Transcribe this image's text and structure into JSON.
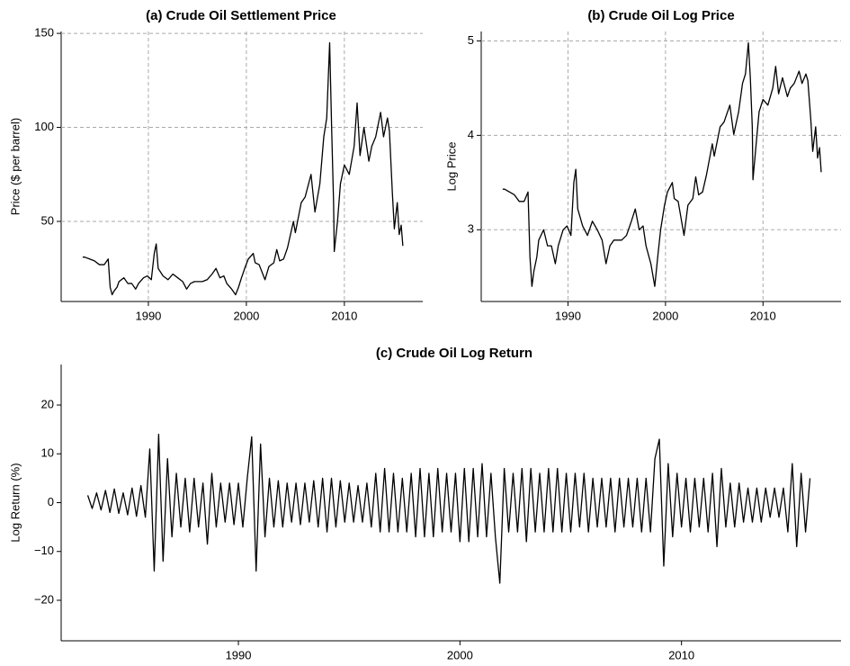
{
  "chart_data": [
    {
      "type": "line",
      "title": "(a) Crude Oil Settlement Price",
      "y_label": "Price ($ per barrel)",
      "color": "#000000",
      "grid": true,
      "x": [
        1983.3,
        1983.5,
        1984,
        1984.5,
        1985,
        1985.5,
        1985.9,
        1986.1,
        1986.3,
        1986.5,
        1986.8,
        1987,
        1987.5,
        1987.9,
        1988.3,
        1988.7,
        1989,
        1989.5,
        1989.9,
        1990.3,
        1990.6,
        1990.8,
        1991,
        1991.5,
        1992,
        1992.5,
        1993,
        1993.5,
        1993.9,
        1994.3,
        1994.7,
        1995,
        1995.5,
        1996,
        1996.5,
        1996.9,
        1997.3,
        1997.7,
        1998,
        1998.5,
        1998.9,
        1999.2,
        1999.5,
        1999.9,
        2000.2,
        2000.7,
        2000.9,
        2001.3,
        2001.9,
        2002.3,
        2002.8,
        2003.1,
        2003.4,
        2003.8,
        2004.2,
        2004.8,
        2005,
        2005.6,
        2006,
        2006.6,
        2007,
        2007.5,
        2007.9,
        2008.2,
        2008.5,
        2008.7,
        2008.9,
        2008.97,
        2009.3,
        2009.6,
        2010,
        2010.5,
        2011,
        2011.3,
        2011.6,
        2012,
        2012.5,
        2012.8,
        2013.2,
        2013.7,
        2014,
        2014.4,
        2014.6,
        2014.9,
        2015.1,
        2015.4,
        2015.6,
        2015.8,
        2015.97
      ],
      "values": [
        31,
        31,
        30,
        29,
        27,
        27,
        30,
        15,
        11,
        13,
        15,
        18,
        20,
        17,
        17,
        14,
        17,
        20,
        21,
        19,
        33,
        38,
        25,
        21,
        19,
        22,
        20,
        18,
        14,
        17,
        18,
        18,
        18,
        19,
        22,
        25,
        20,
        21,
        17,
        14,
        11,
        15,
        20,
        26,
        30,
        33,
        28,
        27,
        19,
        26,
        28,
        35,
        29,
        30,
        36,
        50,
        44,
        60,
        63,
        75,
        55,
        70,
        95,
        105,
        145,
        100,
        60,
        34,
        50,
        70,
        80,
        75,
        90,
        113,
        85,
        100,
        82,
        90,
        95,
        108,
        95,
        105,
        98,
        65,
        46,
        60,
        43,
        48,
        37
      ],
      "xlim": [
        1981.1,
        2018
      ],
      "ylim": [
        7.4,
        151
      ],
      "xticks": [
        1990,
        2000,
        2010
      ],
      "yticks": [
        50,
        100,
        150
      ]
    },
    {
      "type": "line",
      "title": "(b) Crude Oil Log Price",
      "y_label": "Log Price",
      "color": "#000000",
      "grid": true,
      "x": [
        1983.3,
        1983.5,
        1984,
        1984.5,
        1985,
        1985.5,
        1985.9,
        1986.1,
        1986.3,
        1986.5,
        1986.8,
        1987,
        1987.5,
        1987.9,
        1988.3,
        1988.7,
        1989,
        1989.5,
        1989.9,
        1990.3,
        1990.6,
        1990.8,
        1991,
        1991.5,
        1992,
        1992.5,
        1993,
        1993.5,
        1993.9,
        1994.3,
        1994.7,
        1995,
        1995.5,
        1996,
        1996.5,
        1996.9,
        1997.3,
        1997.7,
        1998,
        1998.5,
        1998.9,
        1999.2,
        1999.5,
        1999.9,
        2000.2,
        2000.7,
        2000.9,
        2001.3,
        2001.9,
        2002.3,
        2002.8,
        2003.1,
        2003.4,
        2003.8,
        2004.2,
        2004.8,
        2005,
        2005.6,
        2006,
        2006.6,
        2007,
        2007.5,
        2007.9,
        2008.2,
        2008.5,
        2008.7,
        2008.9,
        2008.97,
        2009.3,
        2009.6,
        2010,
        2010.5,
        2011,
        2011.3,
        2011.6,
        2012,
        2012.5,
        2012.8,
        2013.2,
        2013.7,
        2014,
        2014.4,
        2014.6,
        2014.9,
        2015.1,
        2015.4,
        2015.6,
        2015.8,
        2015.97
      ],
      "values": [
        3.43,
        3.43,
        3.4,
        3.37,
        3.3,
        3.3,
        3.4,
        2.71,
        2.4,
        2.56,
        2.71,
        2.89,
        3.0,
        2.83,
        2.83,
        2.64,
        2.83,
        3.0,
        3.04,
        2.94,
        3.5,
        3.64,
        3.22,
        3.04,
        2.94,
        3.09,
        3.0,
        2.89,
        2.64,
        2.83,
        2.89,
        2.89,
        2.89,
        2.94,
        3.09,
        3.22,
        3.0,
        3.04,
        2.83,
        2.64,
        2.4,
        2.71,
        3.0,
        3.26,
        3.4,
        3.5,
        3.33,
        3.3,
        2.94,
        3.26,
        3.33,
        3.56,
        3.37,
        3.4,
        3.58,
        3.91,
        3.78,
        4.09,
        4.14,
        4.32,
        4.01,
        4.25,
        4.55,
        4.65,
        4.98,
        4.61,
        4.09,
        3.53,
        3.91,
        4.25,
        4.38,
        4.32,
        4.5,
        4.73,
        4.44,
        4.61,
        4.41,
        4.5,
        4.55,
        4.68,
        4.55,
        4.65,
        4.58,
        4.17,
        3.83,
        4.09,
        3.76,
        3.87,
        3.61
      ],
      "xlim": [
        1981.1,
        2018
      ],
      "ylim": [
        2.24,
        5.1
      ],
      "xticks": [
        1990,
        2000,
        2010
      ],
      "yticks": [
        3,
        4,
        5
      ]
    },
    {
      "type": "line",
      "title": "(c) Crude Oil Log Return",
      "y_label": "Log Return (%)",
      "color": "#000000",
      "grid": false,
      "x": [
        1983.2,
        1983.4,
        1983.6,
        1983.8,
        1984.0,
        1984.2,
        1984.4,
        1984.6,
        1984.8,
        1985.0,
        1985.2,
        1985.4,
        1985.6,
        1985.8,
        1986.0,
        1986.2,
        1986.4,
        1986.6,
        1986.8,
        1987.0,
        1987.2,
        1987.4,
        1987.6,
        1987.8,
        1988.0,
        1988.2,
        1988.4,
        1988.6,
        1988.8,
        1989.0,
        1989.2,
        1989.4,
        1989.6,
        1989.8,
        1990.0,
        1990.2,
        1990.4,
        1990.6,
        1990.8,
        1991.0,
        1991.2,
        1991.4,
        1991.6,
        1991.8,
        1992.0,
        1992.2,
        1992.4,
        1992.6,
        1992.8,
        1993.0,
        1993.2,
        1993.4,
        1993.6,
        1993.8,
        1994.0,
        1994.2,
        1994.4,
        1994.6,
        1994.8,
        1995.0,
        1995.2,
        1995.4,
        1995.6,
        1995.8,
        1996.0,
        1996.2,
        1996.4,
        1996.6,
        1996.8,
        1997.0,
        1997.2,
        1997.4,
        1997.6,
        1997.8,
        1998.0,
        1998.2,
        1998.4,
        1998.6,
        1998.8,
        1999.0,
        1999.2,
        1999.4,
        1999.6,
        1999.8,
        2000.0,
        2000.2,
        2000.4,
        2000.6,
        2000.8,
        2001.0,
        2001.2,
        2001.4,
        2001.6,
        2001.8,
        2002.0,
        2002.2,
        2002.4,
        2002.6,
        2002.8,
        2003.0,
        2003.2,
        2003.4,
        2003.6,
        2003.8,
        2004.0,
        2004.2,
        2004.4,
        2004.6,
        2004.8,
        2005.0,
        2005.2,
        2005.4,
        2005.6,
        2005.8,
        2006.0,
        2006.2,
        2006.4,
        2006.6,
        2006.8,
        2007.0,
        2007.2,
        2007.4,
        2007.6,
        2007.8,
        2008.0,
        2008.2,
        2008.4,
        2008.6,
        2008.8,
        2009.0,
        2009.2,
        2009.4,
        2009.6,
        2009.8,
        2010.0,
        2010.2,
        2010.4,
        2010.6,
        2010.8,
        2011.0,
        2011.2,
        2011.4,
        2011.6,
        2011.8,
        2012.0,
        2012.2,
        2012.4,
        2012.6,
        2012.8,
        2013.0,
        2013.2,
        2013.4,
        2013.6,
        2013.8,
        2014.0,
        2014.2,
        2014.4,
        2014.6,
        2014.8,
        2015.0,
        2015.2,
        2015.4,
        2015.6,
        2015.8
      ],
      "values": [
        1.5,
        -1.2,
        2,
        -1.5,
        2.5,
        -2,
        2.8,
        -2.2,
        2,
        -2.5,
        3,
        -2.8,
        3.5,
        -3,
        11,
        -14,
        14,
        -12,
        9,
        -7,
        6,
        -5,
        5,
        -6,
        5,
        -5,
        4,
        -8.5,
        6,
        -5,
        4,
        -4,
        4,
        -4.5,
        4,
        -5,
        5,
        13.5,
        -14,
        12,
        -7,
        5,
        -5,
        4.5,
        -5,
        4,
        -4,
        4,
        -4.5,
        4,
        -4,
        4.5,
        -5,
        5,
        -6,
        5,
        -5,
        4.5,
        -4,
        4,
        -4,
        3.5,
        -4,
        4,
        -5,
        6,
        -6,
        7,
        -6,
        6,
        -6,
        5,
        -6,
        6,
        -7,
        7,
        -7,
        6,
        -7,
        7,
        -6,
        6,
        -6,
        6,
        -8,
        7,
        -8,
        7,
        -7,
        8,
        -7,
        6,
        -7,
        -16.5,
        7,
        -6,
        6,
        -6,
        7,
        -8,
        7,
        -6,
        6,
        -6,
        7,
        -6,
        7,
        -6,
        6,
        -6,
        6,
        -5,
        6,
        -6,
        5,
        -5,
        5,
        -5,
        5,
        -6,
        5,
        -5,
        5,
        -5,
        5,
        -6,
        5,
        -6,
        9,
        13,
        -13,
        8,
        -7,
        6,
        -5,
        5,
        -6,
        5,
        -5,
        5,
        -6,
        6,
        -9,
        7,
        -5,
        4,
        -5,
        4,
        -4,
        3,
        -4,
        3,
        -4,
        3,
        -3,
        3,
        -3,
        3,
        -6,
        8,
        -9,
        6,
        -6,
        5
      ],
      "xlim": [
        1982,
        2017.2
      ],
      "ylim": [
        -28.3,
        28.3
      ],
      "xticks": [
        1990,
        2000,
        2010
      ],
      "yticks": [
        {
          "value": -20,
          "label": "−20"
        },
        {
          "value": -10,
          "label": "−10"
        },
        0,
        10,
        20
      ]
    }
  ]
}
